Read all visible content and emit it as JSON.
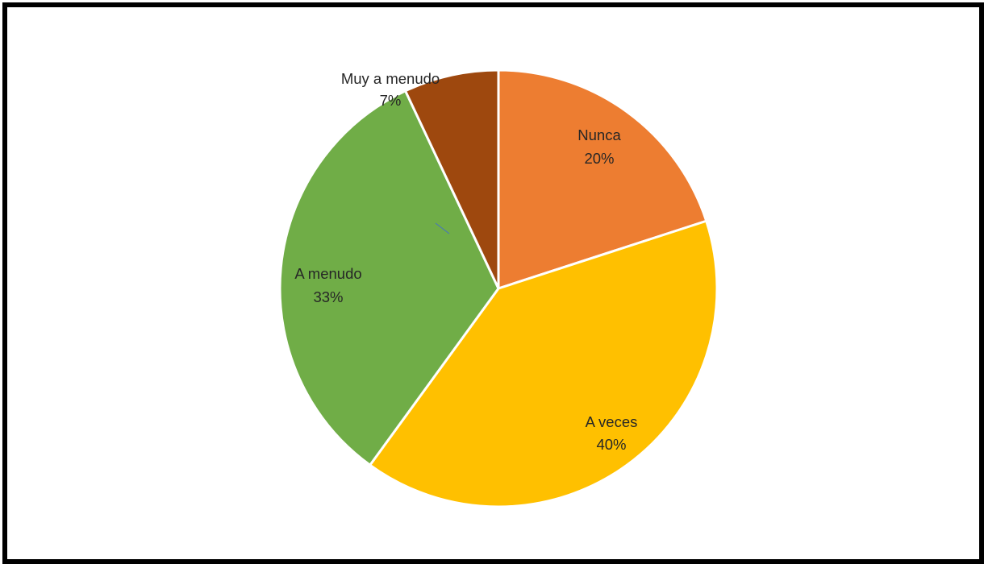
{
  "chart_data": {
    "type": "pie",
    "slices": [
      {
        "label": "Nunca",
        "percent_label": "20%",
        "value": 20,
        "color": "#ED7D31"
      },
      {
        "label": "A veces",
        "percent_label": "40%",
        "value": 40,
        "color": "#FFC000"
      },
      {
        "label": "A menudo",
        "percent_label": "33%",
        "value": 33,
        "color": "#70AD47"
      },
      {
        "label": "Muy a menudo",
        "percent_label": "7%",
        "value": 7,
        "color": "#9E480E"
      }
    ],
    "start_direction": "top, clockwise",
    "legend": "none"
  }
}
